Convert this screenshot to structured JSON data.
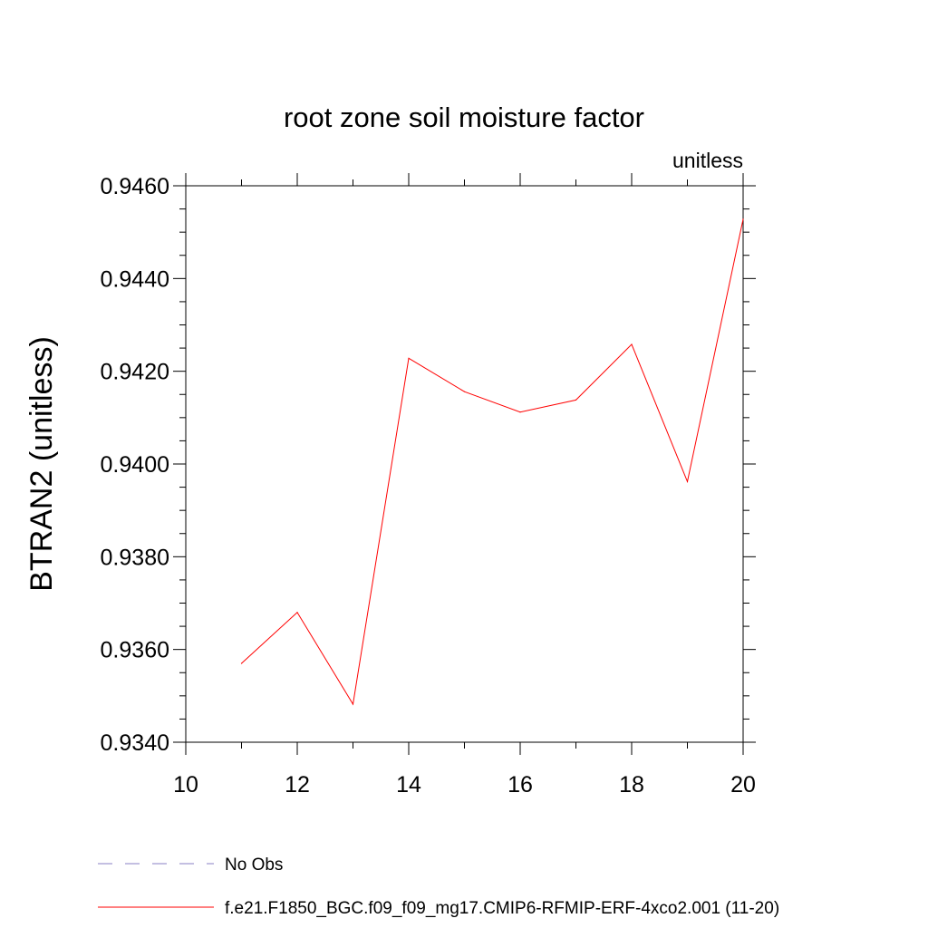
{
  "chart_data": {
    "type": "line",
    "title": "root zone soil moisture factor",
    "units_label": "unitless",
    "ylabel": "BTRAN2  (unitless)",
    "xlabel": "",
    "xlim": [
      10,
      20
    ],
    "ylim": [
      0.934,
      0.946
    ],
    "x_ticks": [
      10,
      12,
      14,
      16,
      18,
      20
    ],
    "x_tick_labels": [
      "10",
      "12",
      "14",
      "16",
      "18",
      "20"
    ],
    "y_ticks": [
      0.934,
      0.936,
      0.938,
      0.94,
      0.942,
      0.944,
      0.946
    ],
    "y_tick_labels": [
      "0.9340",
      "0.9360",
      "0.9380",
      "0.9400",
      "0.9420",
      "0.9440",
      "0.9460"
    ],
    "grid": false,
    "series": [
      {
        "name": "f.e21.F1850_BGC.f09_f09_mg17.CMIP6-RFMIP-ERF-4xco2.001 (11-20)",
        "color": "#ff0000",
        "x": [
          11,
          12,
          13,
          14,
          15,
          16,
          17,
          18,
          19,
          20
        ],
        "values": [
          0.9357,
          0.9368,
          0.93482,
          0.94228,
          0.94156,
          0.94112,
          0.94138,
          0.94258,
          0.93962,
          0.94528
        ]
      }
    ],
    "legend": [
      {
        "label": "No Obs",
        "style": "dashed",
        "color": "#8a7fc4"
      },
      {
        "label": "f.e21.F1850_BGC.f09_f09_mg17.CMIP6-RFMIP-ERF-4xco2.001 (11-20)",
        "style": "solid",
        "color": "#ff0000"
      }
    ],
    "legend_position": "bottom-left"
  }
}
